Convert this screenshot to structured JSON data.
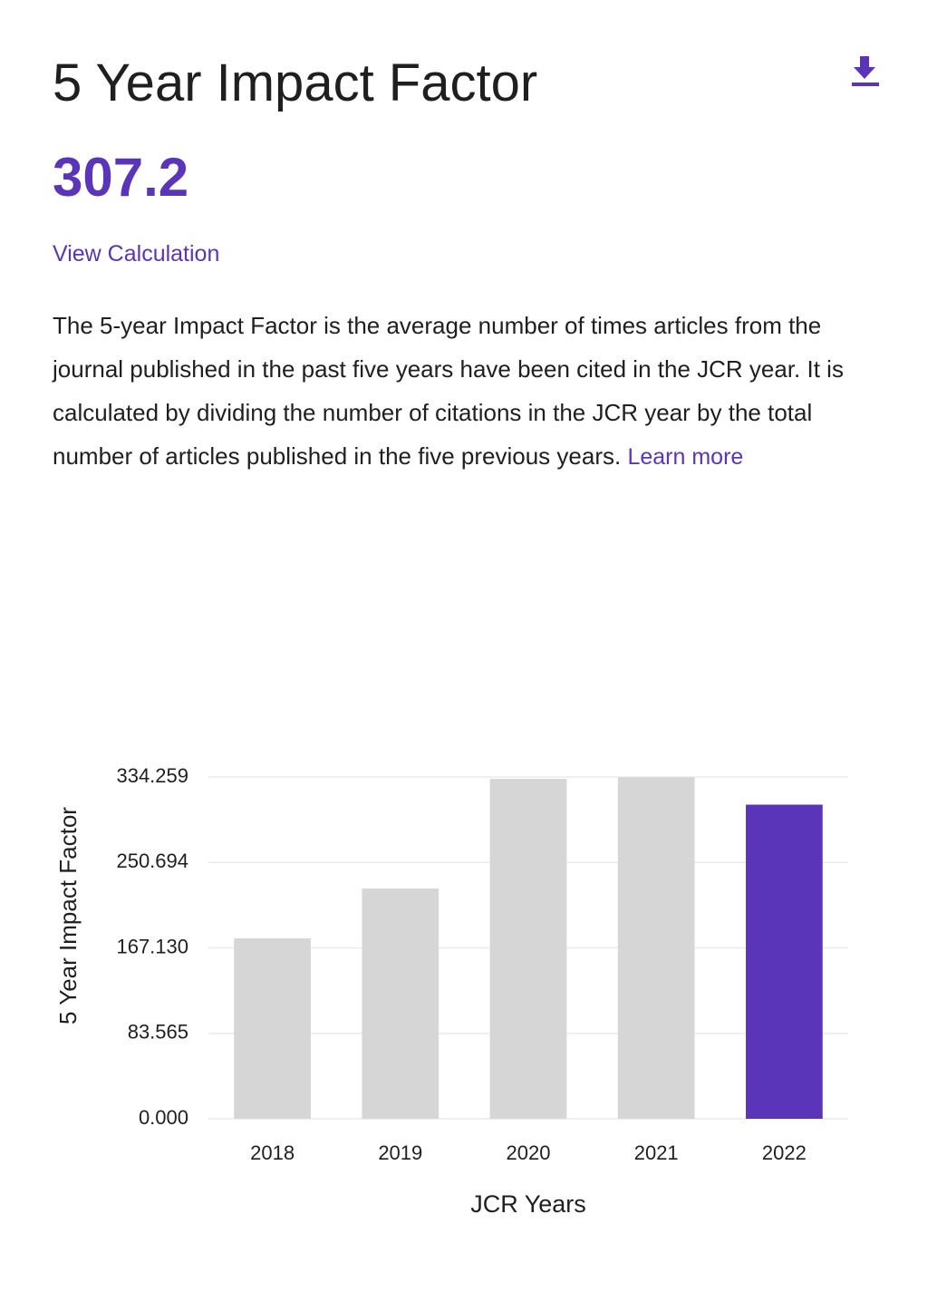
{
  "header": {
    "title": "5 Year Impact Factor",
    "value": "307.2",
    "link": "View Calculation",
    "description": "The 5-year Impact Factor is the average number of times articles from the journal published in the past five years have been cited in the JCR year. It is calculated by dividing the number of citations in the JCR year by the total number of articles published in the five previous years.",
    "learn_more": "Learn more"
  },
  "chart_data": {
    "type": "bar",
    "categories": [
      "2018",
      "2019",
      "2020",
      "2021",
      "2022"
    ],
    "values": [
      176.4,
      225.2,
      332.5,
      334.0,
      307.2
    ],
    "colors": [
      "#d6d6d6",
      "#d6d6d6",
      "#d6d6d6",
      "#d6d6d6",
      "#5a35b9"
    ],
    "ylim": [
      0,
      334.259
    ],
    "yticks": [
      {
        "value": 0,
        "label": "0.000"
      },
      83.565,
      {
        "value": 167.13,
        "label": "167.130"
      },
      250.694,
      334.259
    ],
    "ylabel": "5 Year Impact Factor",
    "xlabel": "JCR Years",
    "grid": true
  }
}
